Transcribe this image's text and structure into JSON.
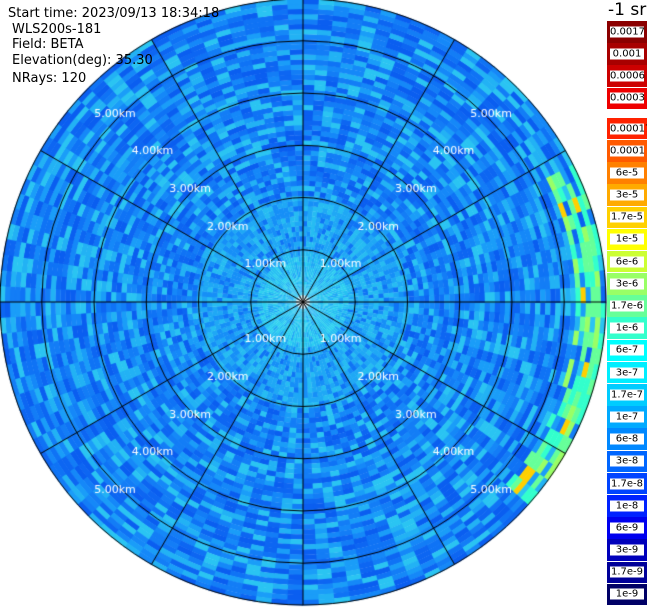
{
  "header": {
    "start_time": "Start time: 2023/09/13 18:34:18",
    "instrument": "WLS200s-181",
    "field": "Field: BETA",
    "elevation": "Elevation(deg): 35.30",
    "nrays": "NRays: 120"
  },
  "chart_data": {
    "type": "heatmap",
    "projection": "polar-ppi",
    "field": "BETA",
    "unit": "-1 sr",
    "nrays": 120,
    "elevation_deg": 35.3,
    "range_rings_km": [
      1,
      2,
      3,
      4,
      5
    ],
    "ring_labels": [
      "1.00km",
      "2.00km",
      "3.00km",
      "4.00km",
      "5.00km"
    ],
    "spokes_deg_step": 30,
    "max_range_km": 5.8,
    "colorbar": [
      {
        "label": "0.0017",
        "color": "#8b0000"
      },
      {
        "label": "0.001",
        "color": "#a80000"
      },
      {
        "label": "0.0006",
        "color": "#cc0000"
      },
      {
        "label": "0.0003",
        "color": "#ee0000"
      },
      {
        "label": "0.00017",
        "color": "#ff2200"
      },
      {
        "label": "0.0001",
        "color": "#ff5a00"
      },
      {
        "label": "6e-5",
        "color": "#ff8000"
      },
      {
        "label": "3e-5",
        "color": "#ffaa00"
      },
      {
        "label": "1.7e-5",
        "color": "#ffd000"
      },
      {
        "label": "1e-5",
        "color": "#ffff00"
      },
      {
        "label": "6e-6",
        "color": "#ccff33"
      },
      {
        "label": "3e-6",
        "color": "#99ff66"
      },
      {
        "label": "1.7e-6",
        "color": "#66ff99"
      },
      {
        "label": "1e-6",
        "color": "#33ffcc"
      },
      {
        "label": "6e-7",
        "color": "#00ffff"
      },
      {
        "label": "3e-7",
        "color": "#00eeff"
      },
      {
        "label": "1.7e-7",
        "color": "#00ccff"
      },
      {
        "label": "1e-7",
        "color": "#00aaff"
      },
      {
        "label": "6e-8",
        "color": "#0088ff"
      },
      {
        "label": "3e-8",
        "color": "#0066ff"
      },
      {
        "label": "1.7e-8",
        "color": "#0044ff"
      },
      {
        "label": "1e-8",
        "color": "#0022ff"
      },
      {
        "label": "6e-9",
        "color": "#0000ee"
      },
      {
        "label": "3e-9",
        "color": "#0000bb"
      },
      {
        "label": "1.7e-9",
        "color": "#000099"
      },
      {
        "label": "1e-9",
        "color": "#000066"
      }
    ],
    "dominant_value_band": [
      "3e-8",
      "6e-7"
    ],
    "notable_feature": "higher backscatter (1e-6 to 1e-5) along east edge of scan"
  }
}
